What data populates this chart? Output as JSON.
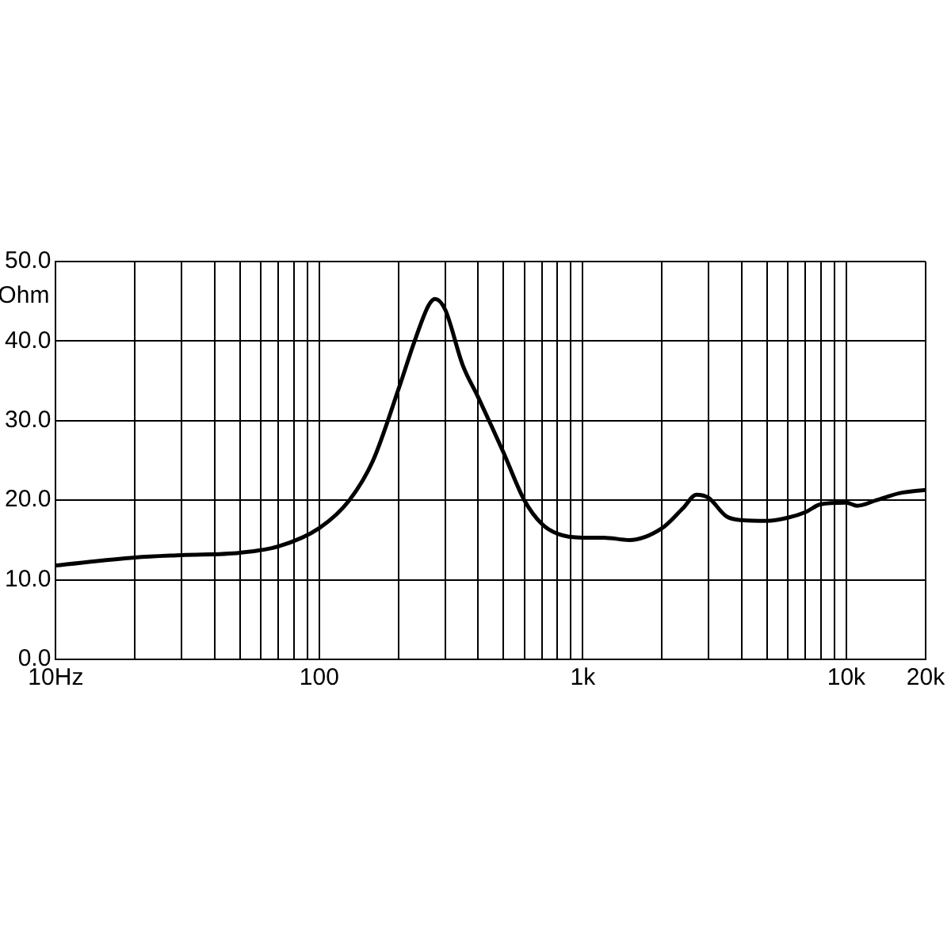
{
  "chart_data": {
    "type": "line",
    "ylabel": "Ohm",
    "log": "x",
    "grid": true,
    "legend": false,
    "marker": "none",
    "line_style": "solid",
    "xlim": [
      10,
      20000
    ],
    "ylim": [
      0,
      50
    ],
    "xticks": [
      {
        "value": 10,
        "label": "10Hz"
      },
      {
        "value": 20,
        "label": null
      },
      {
        "value": 30,
        "label": null
      },
      {
        "value": 40,
        "label": null
      },
      {
        "value": 50,
        "label": null
      },
      {
        "value": 60,
        "label": null
      },
      {
        "value": 70,
        "label": null
      },
      {
        "value": 80,
        "label": null
      },
      {
        "value": 90,
        "label": null
      },
      {
        "value": 100,
        "label": "100"
      },
      {
        "value": 200,
        "label": null
      },
      {
        "value": 300,
        "label": null
      },
      {
        "value": 400,
        "label": null
      },
      {
        "value": 500,
        "label": null
      },
      {
        "value": 600,
        "label": null
      },
      {
        "value": 700,
        "label": null
      },
      {
        "value": 800,
        "label": null
      },
      {
        "value": 900,
        "label": null
      },
      {
        "value": 1000,
        "label": "1k"
      },
      {
        "value": 2000,
        "label": null
      },
      {
        "value": 3000,
        "label": null
      },
      {
        "value": 4000,
        "label": null
      },
      {
        "value": 5000,
        "label": null
      },
      {
        "value": 6000,
        "label": null
      },
      {
        "value": 7000,
        "label": null
      },
      {
        "value": 8000,
        "label": null
      },
      {
        "value": 9000,
        "label": null
      },
      {
        "value": 10000,
        "label": "10k"
      },
      {
        "value": 20000,
        "label": "20k"
      }
    ],
    "yticks": [
      {
        "value": 0,
        "label": "0.0"
      },
      {
        "value": 10,
        "label": "10.0"
      },
      {
        "value": 20,
        "label": "20.0"
      },
      {
        "value": 30,
        "label": "30.0"
      },
      {
        "value": 40,
        "label": "40.0"
      },
      {
        "value": 50,
        "label": "50.0"
      }
    ],
    "x": [
      10,
      20,
      30,
      50,
      70,
      100,
      130,
      160,
      200,
      230,
      260,
      275,
      300,
      350,
      400,
      500,
      600,
      700,
      800,
      1000,
      1200,
      1500,
      2000,
      2400,
      2700,
      3000,
      3500,
      4000,
      5000,
      6000,
      7000,
      8000,
      10000,
      11000,
      13000,
      16000,
      20000
    ],
    "series": [
      {
        "color": "#000000",
        "values": [
          11.8,
          12.8,
          13.1,
          13.4,
          14.2,
          16.5,
          20,
          25,
          34,
          40,
          44.5,
          45.3,
          44,
          37,
          33,
          26,
          20,
          17,
          15.8,
          15.3,
          15.3,
          15,
          16.5,
          19,
          20.7,
          20.3,
          18,
          17.5,
          17.4,
          17.8,
          18.5,
          19.5,
          19.7,
          19.3,
          20,
          20.9,
          21.3
        ]
      }
    ]
  }
}
